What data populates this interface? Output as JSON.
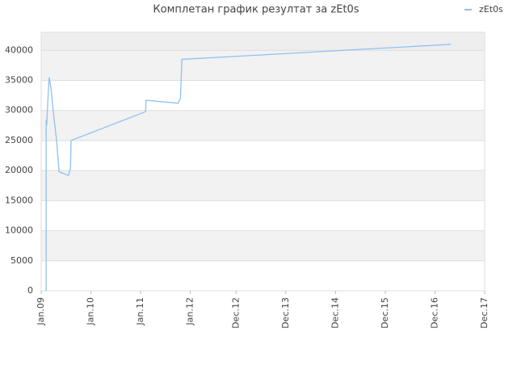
{
  "chart_data": {
    "type": "line",
    "title": "Комплетан график резултат за zEt0s",
    "x": [
      2009.1,
      2009.1,
      2009.11,
      2009.13,
      2009.16,
      2009.2,
      2009.24,
      2009.31,
      2009.36,
      2009.55,
      2009.59,
      2009.6,
      2011.1,
      2011.11,
      2011.75,
      2011.8,
      2011.83,
      2017.24
    ],
    "series": [
      {
        "name": "zEt0s",
        "color": "#8fc1ee",
        "values": [
          0,
          28500,
          27500,
          31000,
          35500,
          33500,
          30000,
          25000,
          19800,
          19200,
          20500,
          25000,
          29800,
          31700,
          31200,
          32000,
          38500,
          41000
        ]
      }
    ],
    "xlim": [
      2009.0,
      2017.92
    ],
    "xticks": [
      {
        "value": 2009.0,
        "label": "Jan.09"
      },
      {
        "value": 2010.0,
        "label": "Jan.10"
      },
      {
        "value": 2011.0,
        "label": "Jan.11"
      },
      {
        "value": 2012.0,
        "label": "Jan.12"
      },
      {
        "value": 2012.92,
        "label": "Dec.12"
      },
      {
        "value": 2013.92,
        "label": "Dec.13"
      },
      {
        "value": 2014.92,
        "label": "Dec.14"
      },
      {
        "value": 2015.92,
        "label": "Dec.15"
      },
      {
        "value": 2016.92,
        "label": "Dec.16"
      },
      {
        "value": 2017.92,
        "label": "Dec.17"
      }
    ],
    "ylim": [
      0,
      43000
    ],
    "yticks": [
      0,
      5000,
      10000,
      15000,
      20000,
      25000,
      30000,
      35000,
      40000
    ],
    "grid": true,
    "legend": "top-right"
  }
}
